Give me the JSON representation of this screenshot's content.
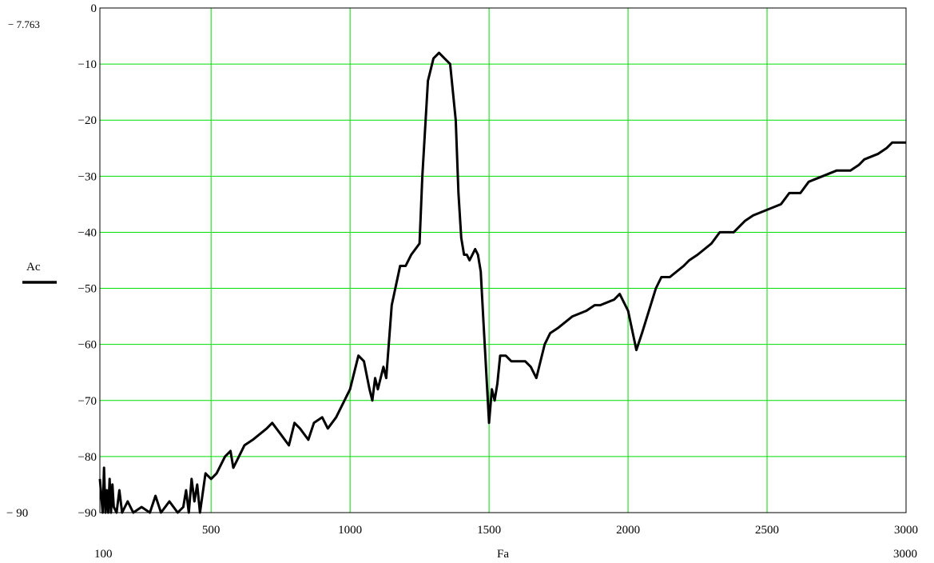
{
  "chart_data": {
    "type": "line",
    "xlabel": "Fa",
    "ylabel": "Ac",
    "xlim": [
      100,
      3000
    ],
    "ylim": [
      -90,
      0
    ],
    "x_tick_labels": [
      "500",
      "1000",
      "1500",
      "2000",
      "2500",
      "3000"
    ],
    "x_tick_values": [
      500,
      1000,
      1500,
      2000,
      2500,
      3000
    ],
    "y_tick_labels": [
      "0",
      "−10",
      "−20",
      "−30",
      "−40",
      "−50",
      "−60",
      "−70",
      "−80",
      "−90"
    ],
    "y_tick_values": [
      0,
      -10,
      -20,
      -30,
      -40,
      -50,
      -60,
      -70,
      -80,
      -90
    ],
    "x_min_label": "100",
    "x_max_label": "3000",
    "y_max_label": "− 7.763",
    "y_min_label": "− 90",
    "grid": true,
    "grid_color": "#00dd00",
    "line_color": "#000000",
    "series": [
      {
        "x": [
          100,
          110,
          115,
          120,
          125,
          130,
          135,
          140,
          145,
          150,
          160,
          170,
          180,
          200,
          220,
          250,
          280,
          300,
          320,
          350,
          380,
          400,
          410,
          420,
          430,
          440,
          450,
          460,
          480,
          500,
          520,
          550,
          570,
          580,
          600,
          620,
          650,
          700,
          720,
          750,
          780,
          800,
          820,
          850,
          870,
          900,
          920,
          950,
          1000,
          1030,
          1050,
          1070,
          1080,
          1090,
          1100,
          1120,
          1130,
          1150,
          1180,
          1200,
          1220,
          1250,
          1260,
          1280,
          1300,
          1320,
          1340,
          1360,
          1380,
          1390,
          1400,
          1410,
          1420,
          1430,
          1440,
          1450,
          1460,
          1470,
          1480,
          1490,
          1500,
          1510,
          1520,
          1530,
          1540,
          1560,
          1580,
          1600,
          1630,
          1650,
          1670,
          1700,
          1720,
          1750,
          1800,
          1850,
          1880,
          1900,
          1950,
          1970,
          2000,
          2030,
          2050,
          2100,
          2120,
          2150,
          2200,
          2220,
          2250,
          2300,
          2330,
          2350,
          2380,
          2420,
          2450,
          2500,
          2550,
          2580,
          2620,
          2650,
          2700,
          2750,
          2800,
          2830,
          2850,
          2900,
          2930,
          2950,
          3000
        ],
        "values": [
          -84,
          -90,
          -82,
          -90,
          -86,
          -90,
          -84,
          -90,
          -85,
          -89,
          -90,
          -86,
          -90,
          -88,
          -90,
          -89,
          -90,
          -87,
          -90,
          -88,
          -90,
          -89,
          -86,
          -90,
          -84,
          -88,
          -85,
          -90,
          -83,
          -84,
          -83,
          -80,
          -79,
          -82,
          -80,
          -78,
          -77,
          -75,
          -74,
          -76,
          -78,
          -74,
          -75,
          -77,
          -74,
          -73,
          -75,
          -73,
          -68,
          -62,
          -63,
          -68,
          -70,
          -66,
          -68,
          -64,
          -66,
          -53,
          -46,
          -46,
          -44,
          -42,
          -30,
          -13,
          -9,
          -8,
          -9,
          -10,
          -20,
          -33,
          -41,
          -44,
          -44,
          -45,
          -44,
          -43,
          -44,
          -47,
          -56,
          -65,
          -74,
          -68,
          -70,
          -67,
          -62,
          -62,
          -63,
          -63,
          -63,
          -64,
          -66,
          -60,
          -58,
          -57,
          -55,
          -54,
          -53,
          -53,
          -52,
          -51,
          -54,
          -61,
          -58,
          -50,
          -48,
          -48,
          -46,
          -45,
          -44,
          -42,
          -40,
          -40,
          -40,
          -38,
          -37,
          -36,
          -35,
          -33,
          -33,
          -31,
          -30,
          -29,
          -29,
          -28,
          -27,
          -26,
          -25,
          -24,
          -24
        ]
      }
    ]
  }
}
